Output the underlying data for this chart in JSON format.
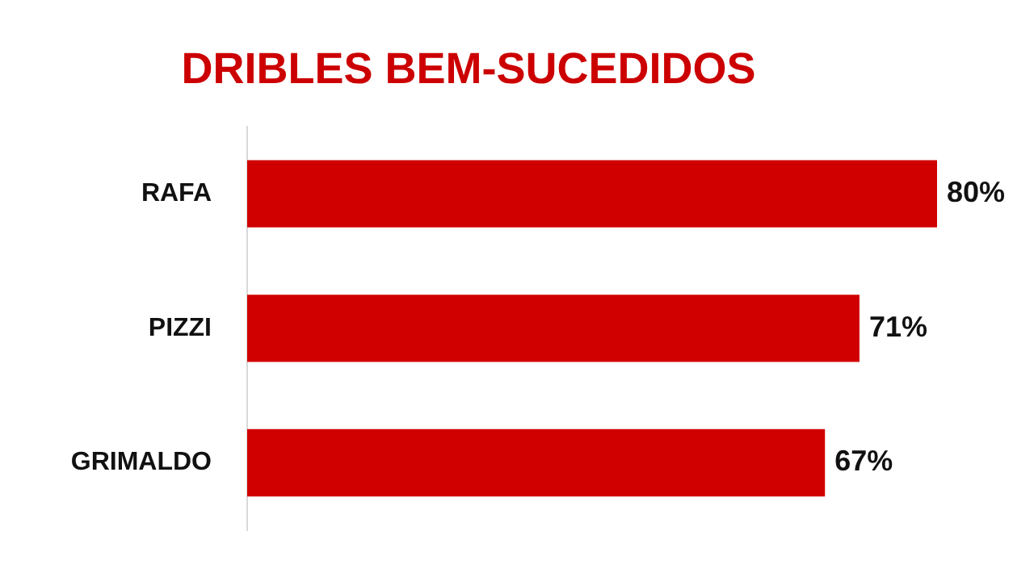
{
  "chart_data": {
    "type": "bar",
    "orientation": "horizontal",
    "title": "DRIBLES BEM-SUCEDIDOS",
    "categories": [
      "RAFA",
      "PIZZI",
      "GRIMALDO"
    ],
    "values": [
      80,
      71,
      67
    ],
    "color": "#d00000",
    "value_labels": [
      "80%",
      "71%",
      "67%"
    ],
    "tick_labels": "y",
    "legend": false
  }
}
